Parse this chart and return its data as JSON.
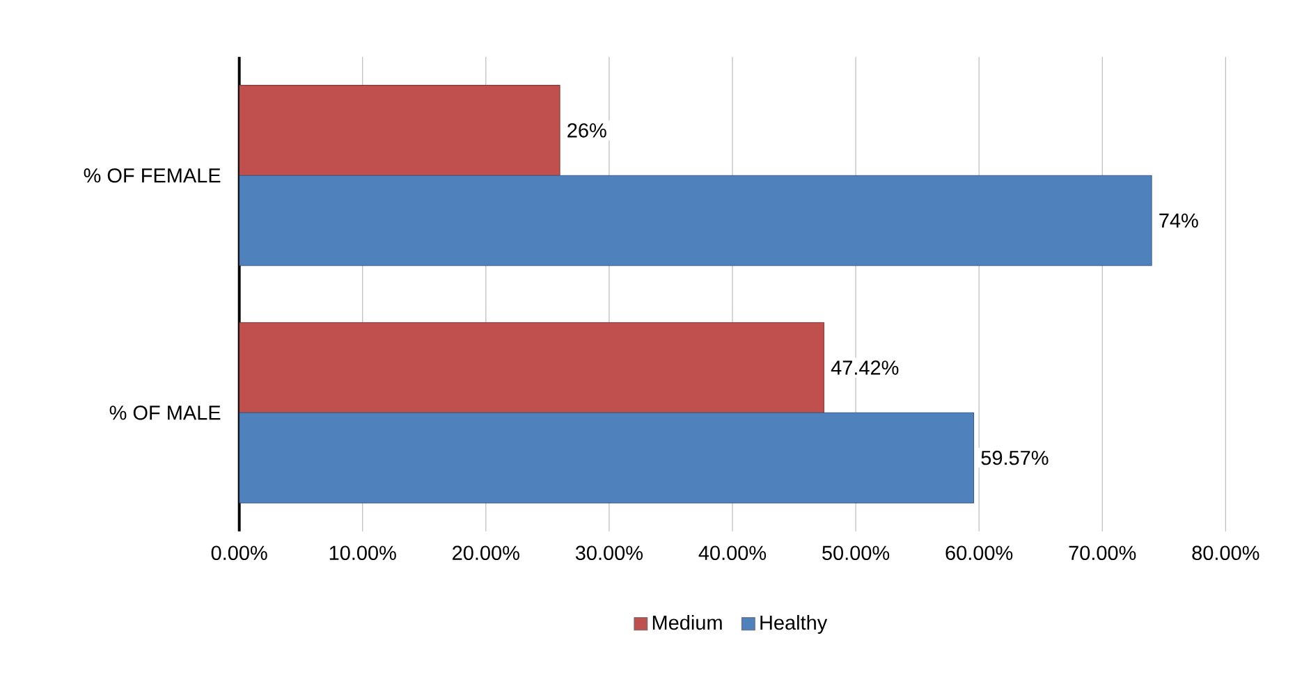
{
  "chart_data": {
    "type": "bar",
    "orientation": "horizontal",
    "categories": [
      "% OF FEMALE",
      "% OF MALE"
    ],
    "series": [
      {
        "name": "Medium",
        "color": "#c0504d",
        "values": [
          26,
          47.42
        ],
        "value_labels": [
          "26%",
          "47.42%"
        ]
      },
      {
        "name": "Healthy",
        "color": "#4f81bd",
        "values": [
          74,
          59.57
        ],
        "value_labels": [
          "74%",
          "59.57%"
        ]
      }
    ],
    "xlim": [
      0,
      80
    ],
    "xticks": [
      {
        "value": 0,
        "label": "0.00%"
      },
      {
        "value": 10,
        "label": "10.00%"
      },
      {
        "value": 20,
        "label": "20.00%"
      },
      {
        "value": 30,
        "label": "30.00%"
      },
      {
        "value": 40,
        "label": "40.00%"
      },
      {
        "value": 50,
        "label": "50.00%"
      },
      {
        "value": 60,
        "label": "60.00%"
      },
      {
        "value": 70,
        "label": "70.00%"
      },
      {
        "value": 80,
        "label": "80.00%"
      }
    ],
    "grid": "x",
    "legend": "bottom"
  }
}
